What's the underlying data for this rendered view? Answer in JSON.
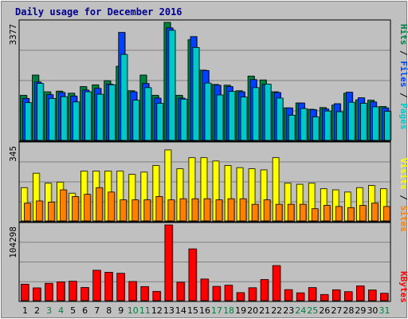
{
  "title": "Daily usage for December 2016",
  "colors": {
    "pages": "#00c8c8",
    "files": "#0040ff",
    "hits": "#008040",
    "visits": "#ffff00",
    "sites": "#ff8000",
    "kbytes": "#ff0000",
    "weekday_label": "#000000",
    "weekend_label": "#008040",
    "legend_separator": "#000000",
    "title": "#00008b"
  },
  "chart_data": [
    {
      "type": "bar",
      "panel": "top",
      "y_max_label": "3377",
      "legend": [
        "Pages",
        "Files",
        "Hits"
      ],
      "categories": [
        "1",
        "2",
        "3",
        "4",
        "5",
        "6",
        "7",
        "8",
        "9",
        "10",
        "11",
        "12",
        "13",
        "14",
        "15",
        "16",
        "17",
        "18",
        "19",
        "20",
        "21",
        "22",
        "23",
        "24",
        "25",
        "26",
        "27",
        "28",
        "29",
        "30",
        "31"
      ],
      "ylim": [
        0,
        3377
      ],
      "series": [
        {
          "name": "Hits",
          "values": [
            1290,
            1870,
            1390,
            1410,
            1350,
            1540,
            1590,
            1710,
            2120,
            1420,
            1870,
            1290,
            3377,
            1290,
            2880,
            2010,
            1600,
            1580,
            1420,
            1840,
            1730,
            1390,
            930,
            1070,
            890,
            940,
            1010,
            1350,
            1160,
            1150,
            970
          ]
        },
        {
          "name": "Files",
          "values": [
            1200,
            1670,
            1310,
            1370,
            1270,
            1440,
            1490,
            1610,
            3090,
            1390,
            1630,
            1210,
            3220,
            1210,
            2970,
            2000,
            1580,
            1540,
            1390,
            1740,
            1600,
            1370,
            930,
            1070,
            880,
            900,
            1050,
            1380,
            1220,
            1100,
            930
          ]
        },
        {
          "name": "Pages",
          "values": [
            1080,
            1630,
            1200,
            1250,
            1100,
            1390,
            1320,
            1590,
            2460,
            1150,
            1510,
            1060,
            3150,
            1180,
            2660,
            1640,
            1300,
            1400,
            1240,
            1510,
            1610,
            1210,
            720,
            910,
            670,
            840,
            820,
            1090,
            1060,
            960,
            830
          ]
        }
      ]
    },
    {
      "type": "bar",
      "panel": "middle",
      "y_max_label": "345",
      "legend": [
        "Sites",
        "Visits"
      ],
      "categories": [
        "1",
        "2",
        "3",
        "4",
        "5",
        "6",
        "7",
        "8",
        "9",
        "10",
        "11",
        "12",
        "13",
        "14",
        "15",
        "16",
        "17",
        "18",
        "19",
        "20",
        "21",
        "22",
        "23",
        "24",
        "25",
        "26",
        "27",
        "28",
        "29",
        "30",
        "31"
      ],
      "ylim": [
        0,
        345
      ],
      "series": [
        {
          "name": "Visits",
          "values": [
            150,
            215,
            170,
            175,
            125,
            225,
            225,
            225,
            225,
            210,
            220,
            250,
            320,
            235,
            285,
            285,
            270,
            250,
            240,
            235,
            230,
            285,
            170,
            165,
            170,
            145,
            140,
            130,
            150,
            160,
            145
          ]
        },
        {
          "name": "Sites",
          "values": [
            80,
            90,
            85,
            140,
            110,
            120,
            150,
            130,
            95,
            95,
            95,
            110,
            95,
            100,
            100,
            100,
            95,
            100,
            100,
            75,
            95,
            75,
            75,
            75,
            55,
            70,
            65,
            60,
            70,
            80,
            65
          ]
        }
      ]
    },
    {
      "type": "bar",
      "panel": "bottom",
      "y_max_label": "104298",
      "legend": [
        "KBytes"
      ],
      "categories": [
        "1",
        "2",
        "3",
        "4",
        "5",
        "6",
        "7",
        "8",
        "9",
        "10",
        "11",
        "12",
        "13",
        "14",
        "15",
        "16",
        "17",
        "18",
        "19",
        "20",
        "21",
        "22",
        "23",
        "24",
        "25",
        "26",
        "27",
        "28",
        "29",
        "30",
        "31"
      ],
      "ylim": [
        0,
        104298
      ],
      "series": [
        {
          "name": "KBytes",
          "values": [
            22700,
            17600,
            23900,
            25900,
            26800,
            18200,
            41900,
            39100,
            37700,
            26400,
            19400,
            12800,
            104298,
            25400,
            71300,
            29800,
            19700,
            21300,
            11100,
            17800,
            29100,
            48300,
            15200,
            10800,
            18000,
            8500,
            15000,
            12400,
            20300,
            14700,
            10200
          ]
        }
      ]
    }
  ]
}
